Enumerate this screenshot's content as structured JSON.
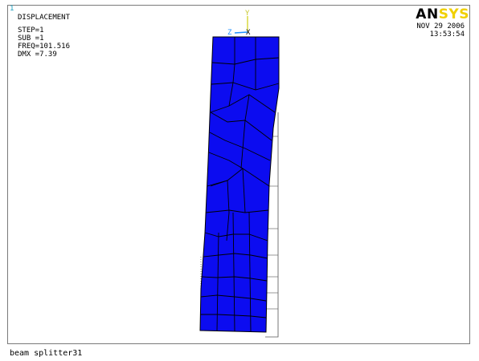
{
  "viewport": {
    "window_number": "1",
    "result_title": "DISPLACEMENT",
    "step": "STEP=1",
    "substep": "SUB =1",
    "frequency": "FREQ=101.516",
    "max_displacement": "DMX =7.39",
    "logo_left": "AN",
    "logo_right": "SYS",
    "date": "NOV 29 2006",
    "time": "13:53:54",
    "triad": {
      "y_label": "Y",
      "z_label": "Z",
      "x_label": "X"
    }
  },
  "footer": {
    "title": "beam splitter31"
  },
  "colors": {
    "mesh_fill": "#0c0cf0",
    "triad_y": "#d8d840",
    "triad_z": "#1e90ff",
    "triad_x": "#000000",
    "logo_yellow": "#f0d000"
  }
}
